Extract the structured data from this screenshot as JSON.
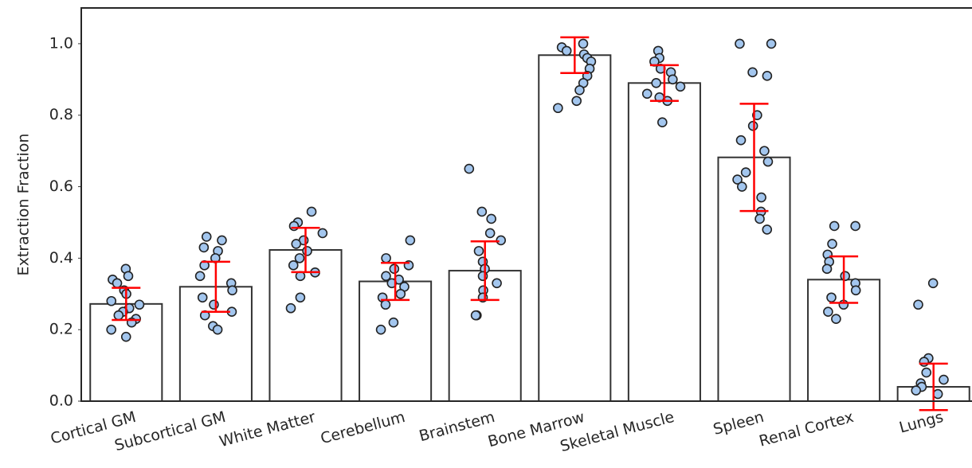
{
  "chart_data": {
    "type": "bar",
    "y_label": "Extraction Fraction",
    "categories": [
      "Cortical GM",
      "Subcortical GM",
      "White Matter",
      "Cerebellum",
      "Brainstem",
      "Bone Marrow",
      "Skeletal Muscle",
      "Spleen",
      "Renal Cortex",
      "Lungs"
    ],
    "values": [
      0.272,
      0.32,
      0.423,
      0.335,
      0.365,
      0.968,
      0.89,
      0.682,
      0.34,
      0.04
    ],
    "errors": [
      0.045,
      0.07,
      0.062,
      0.052,
      0.082,
      0.05,
      0.05,
      0.15,
      0.065,
      0.065
    ],
    "points": [
      [
        0.37,
        0.35,
        0.34,
        0.33,
        0.31,
        0.3,
        0.28,
        0.27,
        0.26,
        0.25,
        0.24,
        0.23,
        0.22,
        0.2,
        0.18
      ],
      [
        0.46,
        0.45,
        0.43,
        0.42,
        0.4,
        0.38,
        0.35,
        0.33,
        0.31,
        0.29,
        0.27,
        0.25,
        0.24,
        0.21,
        0.2
      ],
      [
        0.53,
        0.5,
        0.49,
        0.47,
        0.45,
        0.44,
        0.42,
        0.4,
        0.38,
        0.36,
        0.35,
        0.29,
        0.26
      ],
      [
        0.45,
        0.4,
        0.38,
        0.37,
        0.35,
        0.34,
        0.33,
        0.32,
        0.3,
        0.29,
        0.27,
        0.22,
        0.2
      ],
      [
        0.65,
        0.53,
        0.51,
        0.47,
        0.45,
        0.42,
        0.39,
        0.37,
        0.35,
        0.33,
        0.31,
        0.29,
        0.24,
        0.24
      ],
      [
        1.0,
        0.99,
        0.98,
        0.97,
        0.96,
        0.95,
        0.93,
        0.91,
        0.89,
        0.87,
        0.84,
        0.82
      ],
      [
        0.98,
        0.96,
        0.95,
        0.93,
        0.92,
        0.9,
        0.89,
        0.88,
        0.86,
        0.85,
        0.84,
        0.78
      ],
      [
        1.0,
        1.0,
        0.92,
        0.91,
        0.8,
        0.77,
        0.73,
        0.7,
        0.67,
        0.64,
        0.62,
        0.6,
        0.57,
        0.53,
        0.51,
        0.48
      ],
      [
        0.49,
        0.49,
        0.44,
        0.41,
        0.39,
        0.37,
        0.35,
        0.33,
        0.31,
        0.29,
        0.27,
        0.25,
        0.23
      ],
      [
        0.33,
        0.27,
        0.12,
        0.11,
        0.08,
        0.06,
        0.05,
        0.04,
        0.03,
        0.02
      ]
    ],
    "bar_color": "#ffffff",
    "edge_color": "#333333",
    "error_color": "#ff0000",
    "point_color": "#a3c6ee",
    "ylim": [
      0,
      1.1
    ],
    "yticks": [
      {
        "value": 0,
        "label": "0.0"
      },
      0.2,
      0.4,
      0.6,
      0.8,
      {
        "value": 1.0,
        "label": "1.0"
      }
    ]
  }
}
